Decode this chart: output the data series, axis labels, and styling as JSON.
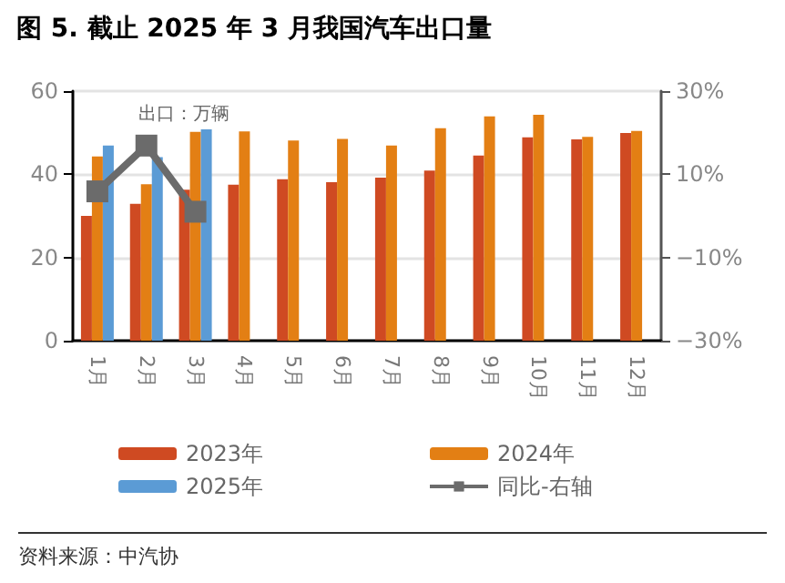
{
  "chart_data": {
    "type": "bar",
    "title": "图 5. 截止 2025 年 3 月我国汽车出口量",
    "categories": [
      "1月",
      "2月",
      "3月",
      "4月",
      "5月",
      "6月",
      "7月",
      "8月",
      "9月",
      "10月",
      "11月",
      "12月"
    ],
    "series": [
      {
        "name": "2023年",
        "color": "#cf4a22",
        "values": [
          30.0,
          32.9,
          36.3,
          37.5,
          38.8,
          38.1,
          39.2,
          40.9,
          44.5,
          48.9,
          48.4,
          49.9
        ]
      },
      {
        "name": "2024年",
        "color": "#e37f14",
        "values": [
          44.3,
          37.6,
          50.2,
          50.3,
          48.1,
          48.5,
          46.9,
          51.1,
          53.9,
          54.3,
          49.0,
          50.4
        ]
      },
      {
        "name": "2025年",
        "color": "#5b9bd5",
        "values": [
          46.9,
          44.1,
          50.8,
          null,
          null,
          null,
          null,
          null,
          null,
          null,
          null,
          null
        ]
      },
      {
        "name": "同比-右轴",
        "type": "line",
        "axis": "y2",
        "color": "#6b6b6b",
        "marker": "square",
        "values": [
          5.9,
          16.9,
          1.0,
          null,
          null,
          null,
          null,
          null,
          null,
          null,
          null,
          null
        ]
      }
    ],
    "ylim": [
      0,
      60
    ],
    "yticks": [
      0,
      20,
      40,
      60
    ],
    "y2lim": [
      -30,
      30
    ],
    "y2ticks": [
      {
        "value": -30,
        "label": "−30%"
      },
      {
        "value": -10,
        "label": "−10%"
      },
      {
        "value": 10,
        "label": "10%"
      },
      {
        "value": 30,
        "label": "30%"
      }
    ],
    "grid": "y",
    "legend": "bottom",
    "annotations": [
      {
        "text": "出口：万辆"
      },
      "资料来源：中汽协"
    ]
  }
}
